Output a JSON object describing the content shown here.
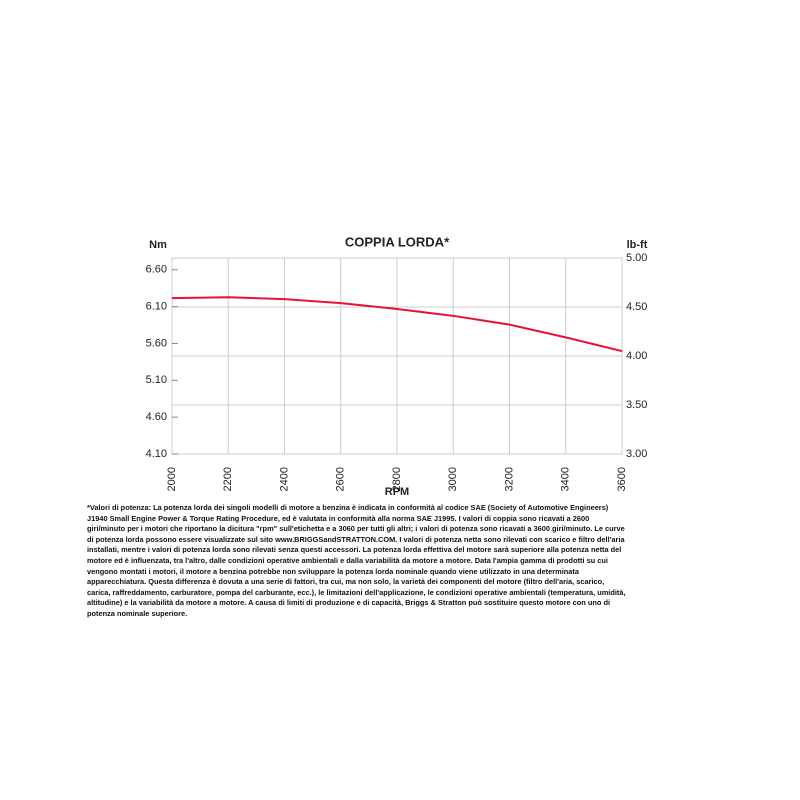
{
  "chart_data": {
    "type": "line",
    "title": "COPPIA LORDA*",
    "ylabel": "Nm",
    "y2label": "lb-ft",
    "xlabel": "RPM",
    "x": [
      2000,
      2200,
      2400,
      2600,
      2800,
      3000,
      3200,
      3400,
      3600
    ],
    "series": [
      {
        "color": "#e8103a",
        "axis": "y2",
        "values": [
          4.59,
          4.6,
          4.58,
          4.54,
          4.48,
          4.41,
          4.32,
          4.19,
          4.05
        ]
      }
    ],
    "xlim": [
      2000,
      3600
    ],
    "xticks": [
      2000,
      2200,
      2400,
      2600,
      2800,
      3000,
      3200,
      3400,
      3600
    ],
    "ylim": [
      4.1,
      6.76
    ],
    "yticks": [
      {
        "value": 4.1,
        "label": "4.10"
      },
      {
        "value": 4.6,
        "label": "4.60"
      },
      {
        "value": 5.1,
        "label": "5.10"
      },
      {
        "value": 5.6,
        "label": "5.60"
      },
      {
        "value": 6.1,
        "label": "6.10"
      },
      {
        "value": 6.6,
        "label": "6.60"
      }
    ],
    "y2lim": [
      3,
      5
    ],
    "y2ticks": [
      {
        "value": 3,
        "label": "3.00"
      },
      {
        "value": 3.5,
        "label": "3.50"
      },
      {
        "value": 4,
        "label": "4.00"
      },
      {
        "value": 4.5,
        "label": "4.50"
      },
      {
        "value": 5,
        "label": "5.00"
      }
    ],
    "grid": true,
    "footnote": "*Valori di potenza: La potenza lorda dei singoli modelli di motore a benzina è indicata in conformità al codice SAE (Society of Automotive Engineers) J1940 Small Engine Power & Torque Rating Procedure, ed è valutata in conformità alla norma SAE J1995. I valori di coppia sono ricavati a 2600 giri/minuto per i motori che riportano la dicitura \"rpm\" sull'etichetta e a 3060 per tutti gli altri; i valori di potenza sono ricavati a 3600 giri/minuto. Le curve di potenza lorda possono essere visualizzate sul sito www.BRIGGSandSTRATTON.COM. I valori di potenza netta sono rilevati con scarico e filtro dell'aria installati, mentre i valori di potenza lorda sono rilevati senza questi accessori. La potenza lorda effettiva del motore sarà superiore alla potenza netta del motore ed è influenzata, tra l'altro, dalle condizioni operative ambientali e dalla variabilità da motore a motore. Data l'ampia gamma di prodotti su cui vengono montati i motori, il motore a benzina potrebbe non sviluppare la potenza lorda nominale quando viene utilizzato in una determinata apparecchiatura. Questa differenza è dovuta a una serie di fattori, tra cui, ma non solo, la varietà dei componenti del motore (filtro dell'aria, scarico, carica, raffreddamento, carburatore, pompa del carburante, ecc.), le limitazioni dell'applicazione, le condizioni operative ambientali (temperatura, umidità, altitudine) e la variabilità da motore a motore. A causa di limiti di produzione e di capacità, Briggs & Stratton può sostituire questo motore con uno di potenza nominale superiore."
  }
}
